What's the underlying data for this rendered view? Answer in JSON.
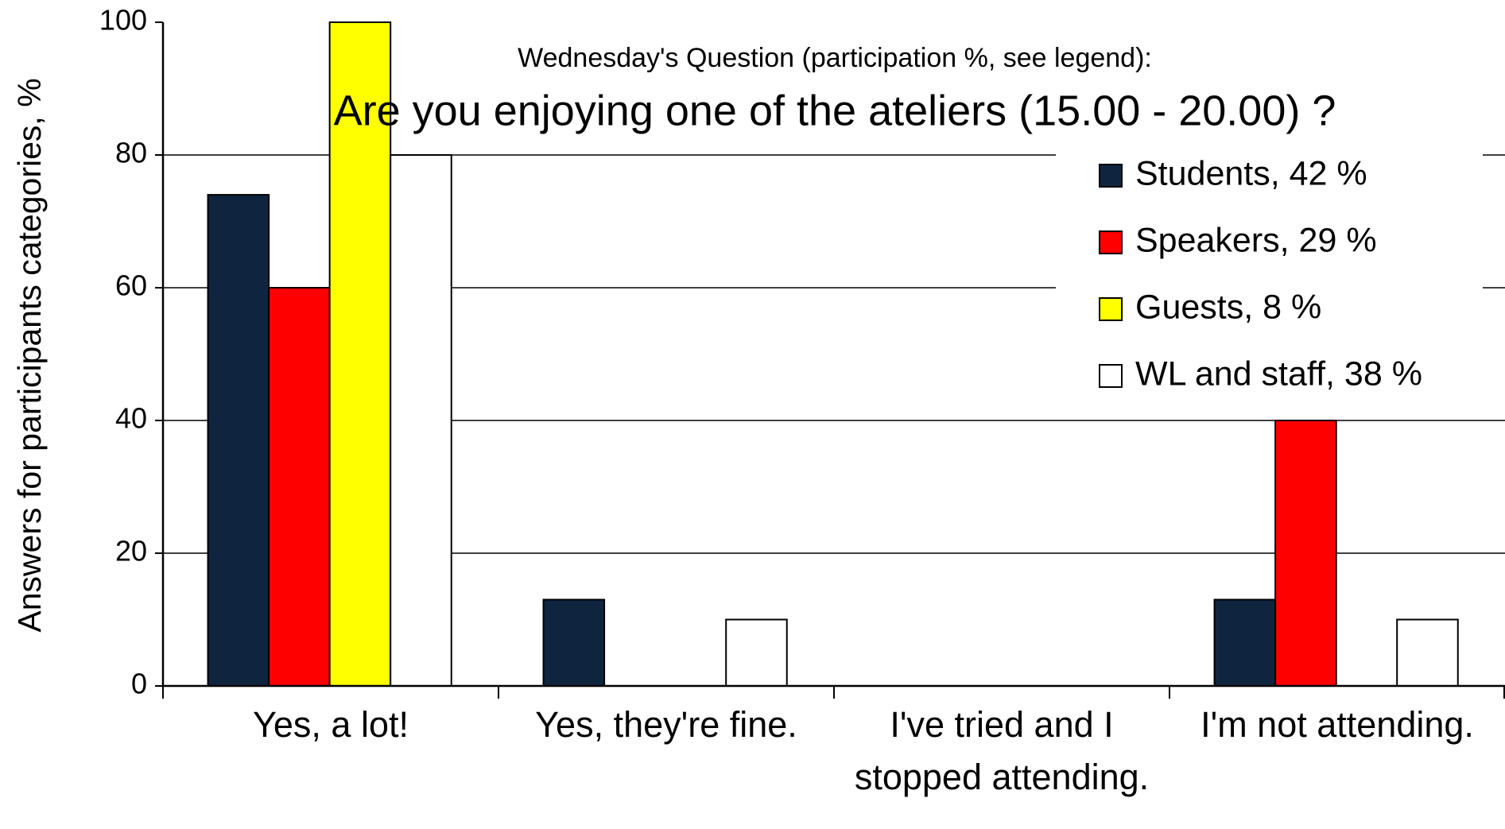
{
  "chart_data": {
    "type": "bar",
    "title": "Are you enjoying one of the ateliers (15.00 - 20.00) ?",
    "subtitle": "Wednesday's Question (participation %, see legend):",
    "y_label": "Answers for participants categories, %",
    "categories": [
      "Yes, a lot!",
      "Yes, they're fine.",
      "I've tried and I stopped attending.",
      "I'm not attending."
    ],
    "series": [
      {
        "name": "Students, 42 %",
        "color": "#0f253f",
        "values": [
          74,
          13,
          0,
          13
        ]
      },
      {
        "name": "Speakers, 29 %",
        "color": "#ff0000",
        "values": [
          60,
          0,
          0,
          40
        ]
      },
      {
        "name": "Guests, 8 %",
        "color": "#ffff00",
        "values": [
          100,
          0,
          0,
          0
        ]
      },
      {
        "name": "WL and staff, 38 %",
        "color": "#ffffff",
        "values": [
          80,
          10,
          0,
          10
        ]
      }
    ],
    "ylim": [
      0,
      100
    ],
    "yticks": [
      0,
      20,
      40,
      60,
      80,
      100
    ],
    "grid": true,
    "legend": "top-right"
  }
}
